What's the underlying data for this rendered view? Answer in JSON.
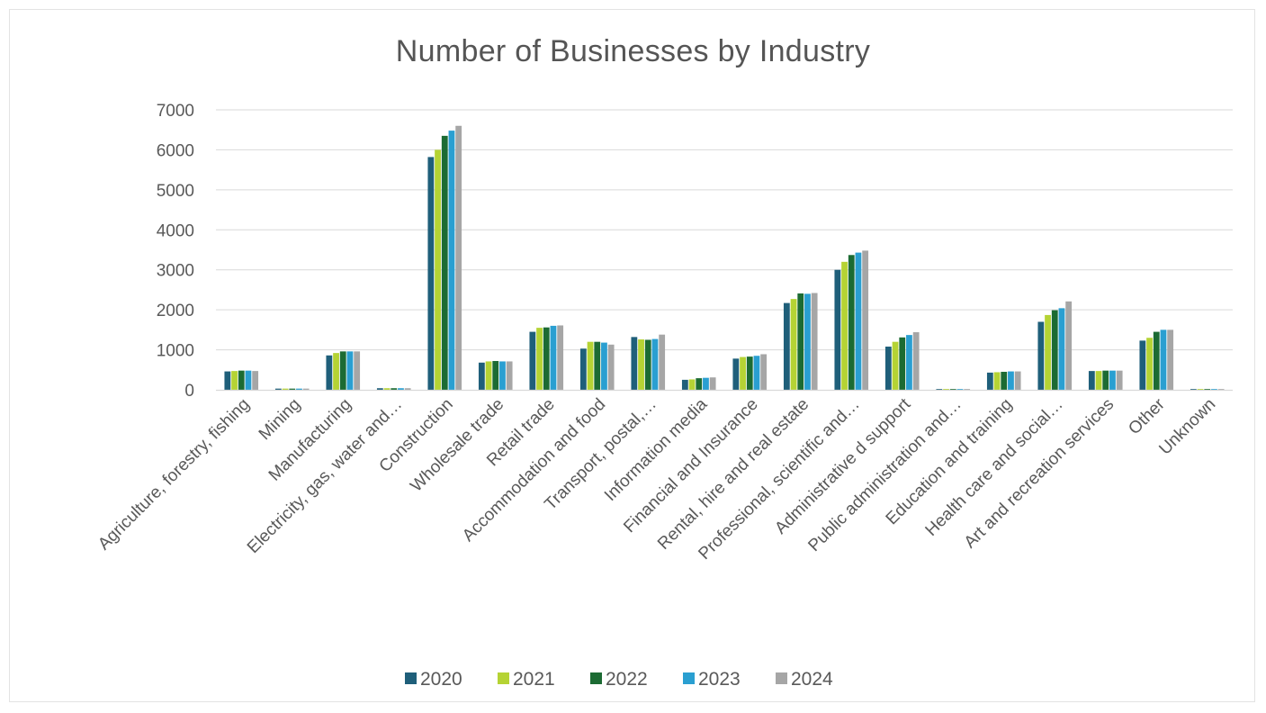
{
  "chart_data": {
    "type": "bar",
    "title": "Number of Businesses by Industry",
    "xlabel": "",
    "ylabel": "",
    "ylim": [
      0,
      7000
    ],
    "yticks": [
      0,
      1000,
      2000,
      3000,
      4000,
      5000,
      6000,
      7000
    ],
    "grid": true,
    "legend_position": "bottom",
    "categories": [
      "Agriculture, forestry, fishing",
      "Mining",
      "Manufacturing",
      "Electricity, gas, water and…",
      "Construction",
      "Wholesale trade",
      "Retail trade",
      "Accommodation and food",
      "Transport, postal,…",
      "Information media",
      "Financial and Insurance",
      "Rental, hire and real estate",
      "Professional, scientific and…",
      "Administrative d support",
      "Public administration and…",
      "Education and training",
      "Health care and social…",
      "Art and recreation services",
      "Other",
      "Unknown"
    ],
    "series": [
      {
        "name": "2020",
        "color": "#1f5f7a",
        "values": [
          460,
          30,
          860,
          40,
          5820,
          680,
          1450,
          1030,
          1320,
          250,
          780,
          2170,
          3000,
          1080,
          20,
          430,
          1700,
          470,
          1230,
          20
        ]
      },
      {
        "name": "2021",
        "color": "#b5d334",
        "values": [
          470,
          30,
          920,
          40,
          6000,
          710,
          1550,
          1200,
          1260,
          260,
          820,
          2270,
          3200,
          1200,
          20,
          440,
          1870,
          470,
          1300,
          20
        ]
      },
      {
        "name": "2022",
        "color": "#1c6b33",
        "values": [
          480,
          30,
          960,
          40,
          6350,
          720,
          1560,
          1200,
          1250,
          290,
          830,
          2410,
          3370,
          1310,
          20,
          450,
          1990,
          480,
          1450,
          20
        ]
      },
      {
        "name": "2023",
        "color": "#2a9fd1",
        "values": [
          480,
          30,
          960,
          40,
          6480,
          710,
          1600,
          1180,
          1270,
          300,
          850,
          2400,
          3430,
          1370,
          20,
          460,
          2040,
          480,
          1500,
          20
        ]
      },
      {
        "name": "2024",
        "color": "#a6a6a6",
        "values": [
          470,
          30,
          960,
          40,
          6600,
          710,
          1610,
          1130,
          1380,
          310,
          890,
          2420,
          3480,
          1440,
          20,
          460,
          2210,
          480,
          1500,
          20
        ]
      }
    ]
  }
}
